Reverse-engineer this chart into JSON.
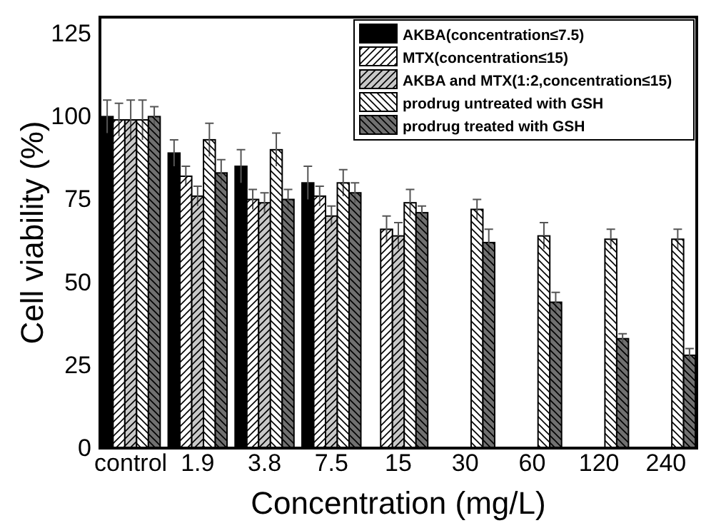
{
  "chart_data": {
    "type": "bar",
    "xlabel": "Concentration (mg/L)",
    "ylabel": "Cell viability (%)",
    "categories": [
      "control",
      "1.9",
      "3.8",
      "7.5",
      "15",
      "30",
      "60",
      "120",
      "240"
    ],
    "ylim": [
      0,
      130
    ],
    "yticks": [
      0,
      25,
      50,
      75,
      100,
      125
    ],
    "grid": false,
    "legend": "top right",
    "series": [
      {
        "name": "AKBA(concentration≤7.5)",
        "color": "#000000",
        "values": [
          100,
          89,
          85,
          80,
          null,
          null,
          null,
          null,
          null
        ],
        "errors": [
          5,
          4,
          5,
          5,
          null,
          null,
          null,
          null,
          null
        ]
      },
      {
        "name": "MTX(concentration≤15)",
        "color": "#ffffff",
        "values": [
          99,
          82,
          75,
          76,
          66,
          null,
          null,
          null,
          null
        ],
        "errors": [
          5,
          3,
          3,
          3,
          4,
          null,
          null,
          null,
          null
        ]
      },
      {
        "name": "AKBA and MTX(1:2,concentration≤15)",
        "color": "#c8c8c8",
        "values": [
          99,
          76,
          74,
          70,
          64,
          null,
          null,
          null,
          null
        ],
        "errors": [
          6,
          3,
          3,
          3,
          4,
          null,
          null,
          null,
          null
        ]
      },
      {
        "name": "prodrug untreated with GSH",
        "color": "#ffffff",
        "values": [
          99,
          93,
          90,
          80,
          74,
          72,
          64,
          63,
          63
        ],
        "errors": [
          6,
          5,
          5,
          4,
          4,
          3,
          4,
          3,
          3
        ]
      },
      {
        "name": "prodrug treated with GSH",
        "color": "#707070",
        "values": [
          100,
          83,
          75,
          77,
          71,
          62,
          44,
          33,
          28
        ],
        "errors": [
          3,
          4,
          3,
          3,
          2,
          4,
          3,
          1.5,
          2
        ]
      }
    ]
  }
}
